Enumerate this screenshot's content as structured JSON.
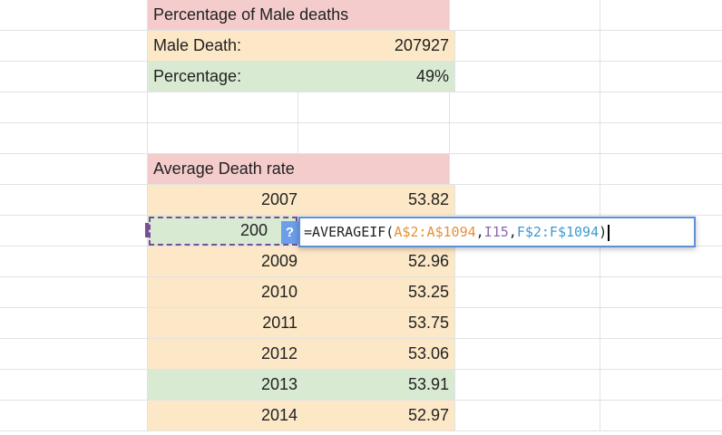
{
  "rows": [
    {
      "key": "header1",
      "label": "Percentage of Male deaths",
      "value": ""
    },
    {
      "key": "male_death",
      "label": "Male Death:",
      "value": "207927"
    },
    {
      "key": "percentage",
      "label": "Percentage:",
      "value": "49%"
    }
  ],
  "avg_header": "Average Death rate",
  "year_rows": [
    {
      "year": "2007",
      "rate": "53.82"
    },
    {
      "year": "200",
      "rate": ""
    },
    {
      "year": "2009",
      "rate": "52.96"
    },
    {
      "year": "2010",
      "rate": "53.25"
    },
    {
      "year": "2011",
      "rate": "53.75"
    },
    {
      "year": "2012",
      "rate": "53.06"
    },
    {
      "year": "2013",
      "rate": "53.91"
    },
    {
      "year": "2014",
      "rate": "52.97"
    }
  ],
  "editor": {
    "help": "?",
    "tokens": {
      "prefix": "=AVERAGEIF(",
      "range1": "A$2:A$1094",
      "comma1": ",",
      "crit": "I15",
      "comma2": ",",
      "range2": "F$2:F$1094",
      "suffix": ")"
    }
  },
  "colors": {
    "header_fill": "#f4cccc",
    "label_fill": "#fce8c7",
    "value_fill": "#d9ead3",
    "editor_border": "#5b8fd8",
    "selection_border": "#7a4d9a"
  }
}
